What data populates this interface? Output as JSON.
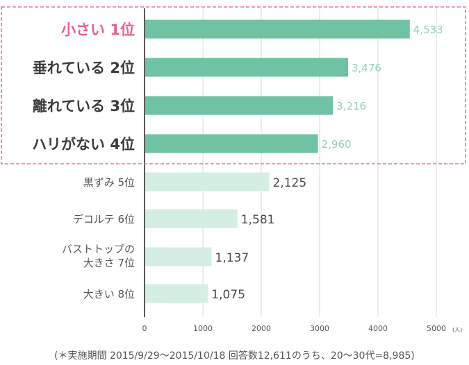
{
  "chart_data": {
    "type": "bar",
    "orientation": "horizontal",
    "categories": [
      "小さい 1位",
      "垂れている 2位",
      "離れている 3位",
      "ハリがない 4位",
      "黒ずみ 5位",
      "デコルテ 6位",
      "バストトップの 大きさ 7位",
      "大きい 8位"
    ],
    "category_lines": [
      [
        "小さい 1位"
      ],
      [
        "垂れている 2位"
      ],
      [
        "離れている 3位"
      ],
      [
        "ハリがない 4位"
      ],
      [
        "黒ずみ 5位"
      ],
      [
        "デコルテ 6位"
      ],
      [
        "バストトップの",
        "大きさ 7位"
      ],
      [
        "大きい 8位"
      ]
    ],
    "values": [
      4533,
      3476,
      3216,
      2960,
      2125,
      1581,
      1137,
      1075
    ],
    "value_labels": [
      "4,533",
      "3,476",
      "3,216",
      "2,960",
      "2,125",
      "1,581",
      "1,137",
      "1,075"
    ],
    "highlighted_count": 4,
    "xlim": [
      0,
      5000
    ],
    "xticks": [
      "0",
      "1000",
      "2000",
      "3000",
      "4000",
      "5000"
    ],
    "unit": "(人)",
    "title": "",
    "xlabel": "",
    "ylabel": "",
    "grid": true,
    "footnote": "(＊実施期間 2015/9/29〜2015/10/18 回答数12,611のうち、20〜30代=8,985)"
  },
  "colors": {
    "bar_highlight": "#6fc3a3",
    "bar_normal": "#d4eee3",
    "first_label": "#e8608e",
    "highlight_box": "#ee6ea0",
    "grid": "#d9d9d9"
  }
}
